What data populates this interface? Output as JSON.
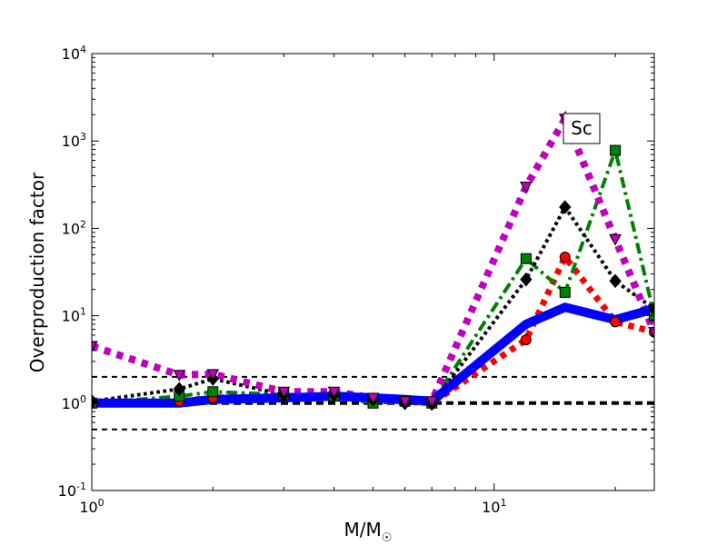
{
  "chart_data": {
    "type": "line",
    "xscale": "log",
    "yscale": "log",
    "xlim": [
      1,
      25
    ],
    "ylim": [
      0.1,
      10000
    ],
    "xlabel": "M/M",
    "xlabel_sub": "☉",
    "ylabel": "Overproduction factor",
    "grid": false,
    "x_ticks": [
      {
        "value": 1,
        "base": "10",
        "exp": "0"
      },
      {
        "value": 10,
        "base": "10",
        "exp": "1"
      }
    ],
    "y_ticks": [
      {
        "value": 0.1,
        "base": "10",
        "exp": "-1"
      },
      {
        "value": 1,
        "base": "10",
        "exp": "0"
      },
      {
        "value": 10,
        "base": "10",
        "exp": "1"
      },
      {
        "value": 100,
        "base": "10",
        "exp": "2"
      },
      {
        "value": 1000,
        "base": "10",
        "exp": "3"
      },
      {
        "value": 10000,
        "base": "10",
        "exp": "4"
      }
    ],
    "annotation": "Sc",
    "reference_lines": [
      {
        "y": 2,
        "style": "dashed",
        "color": "#000000",
        "width": 2
      },
      {
        "y": 1,
        "style": "dashed",
        "color": "#000000",
        "width": 4
      },
      {
        "y": 0.5,
        "style": "dashed",
        "color": "#000000",
        "width": 2
      }
    ],
    "series": [
      {
        "marker": "circle",
        "color": "#ff0000",
        "line_style": "dotted",
        "line_width": 7,
        "x": [
          1,
          1.65,
          2,
          3,
          4,
          5,
          6,
          7,
          12,
          15,
          20,
          25
        ],
        "y": [
          1.0,
          1.05,
          1.15,
          1.2,
          1.2,
          1.1,
          1.05,
          1.0,
          5.3,
          47,
          8.5,
          6.5
        ]
      },
      {
        "marker": "square",
        "color": "#008000",
        "line_style": "dashdot",
        "line_width": 4,
        "x": [
          1,
          1.65,
          2,
          3,
          4,
          5,
          6,
          7,
          12,
          15,
          20,
          25
        ],
        "y": [
          1.0,
          1.2,
          1.35,
          1.25,
          1.2,
          1.0,
          1.05,
          1.0,
          45,
          18.5,
          780,
          10
        ]
      },
      {
        "marker": "diamond",
        "color": "#000000",
        "line_style": "dotted",
        "line_width": 4,
        "x": [
          1,
          1.65,
          2,
          3,
          4,
          5,
          6,
          7,
          12,
          15,
          20,
          25
        ],
        "y": [
          1.05,
          1.45,
          1.9,
          1.25,
          1.25,
          1.1,
          1.0,
          0.98,
          26,
          175,
          25,
          12
        ]
      },
      {
        "marker": "triangle-down",
        "color": "#bf00bf",
        "line_style": "dotted",
        "line_width": 8,
        "x": [
          1,
          1.65,
          2,
          3,
          4,
          5,
          6,
          7,
          12,
          15,
          20,
          25
        ],
        "y": [
          4.5,
          2.1,
          2.15,
          1.35,
          1.35,
          1.15,
          1.05,
          1.05,
          300,
          1800,
          75,
          6.5
        ]
      },
      {
        "marker": "none",
        "color": "#0000ff",
        "line_style": "solid",
        "line_width": 10,
        "x": [
          1,
          1.65,
          2,
          3,
          4,
          5,
          6,
          7,
          12,
          15,
          20,
          25
        ],
        "y": [
          1.0,
          1.0,
          1.1,
          1.15,
          1.2,
          1.15,
          1.1,
          1.05,
          8,
          12.5,
          9,
          12
        ]
      }
    ]
  }
}
